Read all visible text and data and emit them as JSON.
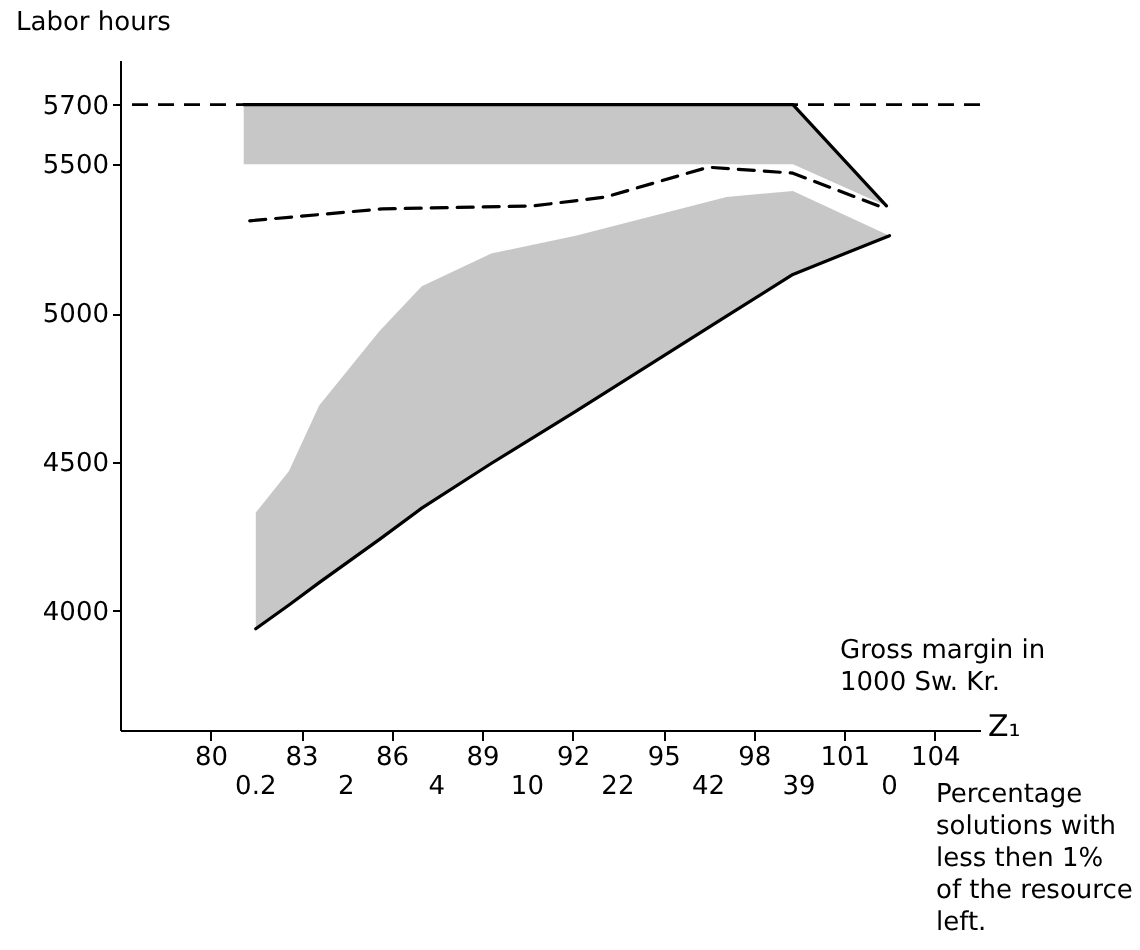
{
  "chart_data": {
    "type": "line",
    "ylabel": "Labor hours",
    "xlabel": "Z₁",
    "annotations": [
      "Gross margin in 1000 Sw. Kr.",
      "Percentage solutions with less then 1% of the resource left.",
      "0.2",
      "2",
      "4",
      "10",
      "22",
      "42",
      "39",
      "0"
    ],
    "xlim": [
      77,
      105.5
    ],
    "xticks": [
      80,
      83,
      86,
      89,
      92,
      95,
      98,
      101,
      104
    ],
    "ylim": [
      3600,
      5850
    ],
    "yticks": [
      4000,
      4500,
      5000,
      5500,
      5700
    ],
    "grid": false,
    "marker": "none",
    "series": [
      {
        "color": "#000000",
        "x": [
          81.5,
          82.6,
          83.6,
          85.6,
          87,
          89.3,
          92.1,
          97.1,
          99.3,
          102.5
        ],
        "values": [
          3940,
          4020,
          4095,
          4240,
          4345,
          4495,
          4670,
          4990,
          5130,
          5260
        ],
        "lower": [
          3940,
          4020,
          4095,
          4240,
          4345,
          4495,
          4670,
          4990,
          5130,
          5260
        ],
        "upper": [
          4330,
          4470,
          4690,
          4940,
          5090,
          5200,
          5260,
          5390,
          5410,
          5260
        ]
      },
      {
        "color": "#000000",
        "x": [
          81.1,
          99.3,
          102.4
        ],
        "values": [
          5700,
          5700,
          5360
        ],
        "lower": [
          5500,
          5500,
          5360
        ],
        "upper": [
          5700,
          5700,
          5360
        ]
      },
      {
        "color": "#000000",
        "line_style": "dashed",
        "x": [
          81.3,
          85.7,
          90.7,
          93.1,
          96.5,
          99.3,
          102.4
        ],
        "values": [
          5310,
          5350,
          5360,
          5390,
          5490,
          5470,
          5350
        ]
      }
    ],
    "ref_lines": [
      {
        "axis": "y",
        "value": 5700,
        "color": "#000000",
        "line_style": "dashed"
      }
    ]
  }
}
